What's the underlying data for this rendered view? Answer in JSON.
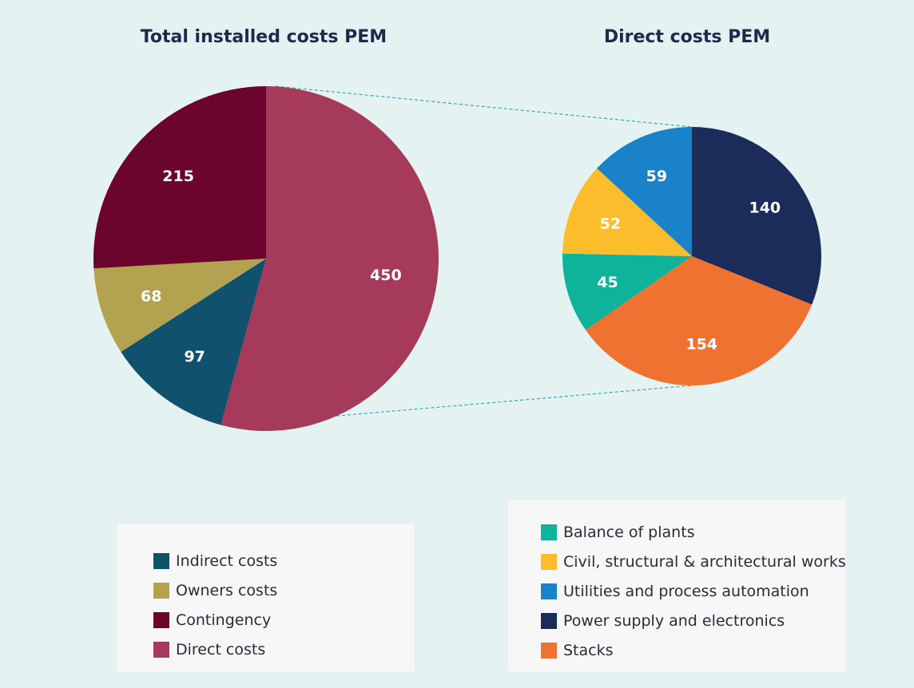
{
  "chart_data": [
    {
      "type": "pie",
      "title": "Total installed costs PEM",
      "categories": [
        "Direct costs",
        "Indirect costs",
        "Owners costs",
        "Contingency"
      ],
      "values": [
        450,
        97,
        68,
        215
      ],
      "colors": [
        "#a63a5a",
        "#10516d",
        "#b3a24f",
        "#6b052b"
      ],
      "legend": [
        "Indirect costs",
        "Owners costs",
        "Contingency",
        "Direct costs"
      ],
      "legend_colors": [
        "#10516d",
        "#b3a24f",
        "#6b052b",
        "#a63a5a"
      ],
      "legend_position": "bottom-left"
    },
    {
      "type": "pie",
      "title": "Direct costs PEM",
      "categories": [
        "Power supply and electronics",
        "Stacks",
        "Balance of plants",
        "Civil, structural & architectural works",
        "Utilities and process automation"
      ],
      "values": [
        140,
        154,
        45,
        52,
        59
      ],
      "colors": [
        "#1c2c5a",
        "#f07230",
        "#0fb39a",
        "#fbbd2c",
        "#1a82c8"
      ],
      "legend": [
        "Balance of plants",
        "Civil, structural & architectural works",
        "Utilities and process automation",
        "Power supply and electronics",
        "Stacks"
      ],
      "legend_colors": [
        "#0fb39a",
        "#fbbd2c",
        "#1a82c8",
        "#1c2c5a",
        "#f07230"
      ],
      "legend_position": "bottom-right"
    }
  ],
  "connector_color": "#3aa6b7"
}
